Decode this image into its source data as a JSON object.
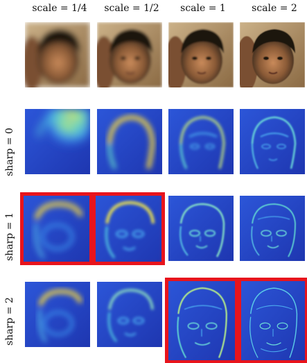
{
  "columns": [
    "scale = 1/4",
    "scale = 1/2",
    "scale = 1",
    "scale = 2"
  ],
  "rows": [
    "sharp = 0",
    "sharp = 1",
    "sharp = 2"
  ],
  "highlight_color": "#e8141c",
  "highlighted_cells": [
    {
      "row": "sharp = 1",
      "column": "scale = 1/4"
    },
    {
      "row": "sharp = 1",
      "column": "scale = 1/2"
    },
    {
      "row": "sharp = 2",
      "column": "scale = 1"
    },
    {
      "row": "sharp = 2",
      "column": "scale = 2"
    }
  ],
  "colormap": [
    "#1d2fa6",
    "#2a78e8",
    "#4fd6d6",
    "#f2e84a",
    "#f58a1f"
  ]
}
